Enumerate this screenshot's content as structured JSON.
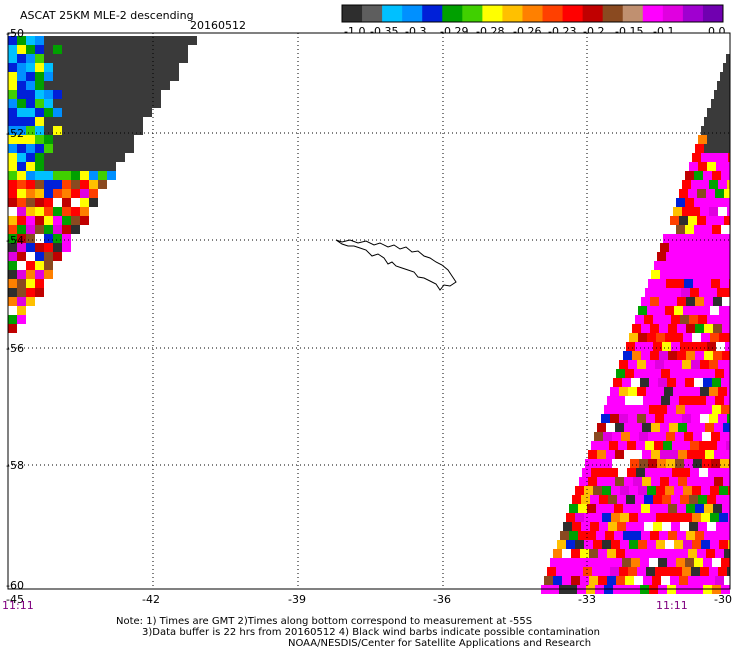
{
  "header": {
    "title": "ASCAT 25KM MLE-2 descending",
    "date": "20160512"
  },
  "colorbar": {
    "labels": [
      "-1.0",
      "-0.35",
      "-0.3",
      "-0.29",
      "-0.28",
      "-0.26",
      "-0.23",
      "-0.2",
      "-0.15",
      "-0.1",
      "0.0"
    ],
    "colors": [
      "#2e2e2e",
      "#5e5e5e",
      "#00c0ff",
      "#0090ff",
      "#0020d8",
      "#00a000",
      "#40d000",
      "#ffff00",
      "#ffc000",
      "#ff8000",
      "#ff4000",
      "#ff0000",
      "#c00000",
      "#8a4a20",
      "#c09070",
      "#ff00ff",
      "#e000e0",
      "#a000d0",
      "#7000b0"
    ]
  },
  "map": {
    "lat_labels": [
      "-50",
      "-52",
      "-54",
      "-56",
      "-58",
      "-60"
    ],
    "lon_labels": [
      "-45",
      "-42",
      "-39",
      "-36",
      "-33",
      "-30"
    ],
    "times": {
      "left": "11:11",
      "right": "11:11"
    }
  },
  "footer": {
    "line1": "Note: 1) Times are GMT 2)Times along bottom correspond to measurement at -55S",
    "line2": "3)Data buffer is 22 hrs from 20160512 4) Black wind barbs indicate possible contamination",
    "line3": "NOAA/NESDIS/Center for Satellite Applications and Research"
  },
  "colors": {
    "purple_time": "#800080",
    "grid": "#000000",
    "magenta": "#ff00ff",
    "dark_gray": "#3a3a3a"
  }
}
